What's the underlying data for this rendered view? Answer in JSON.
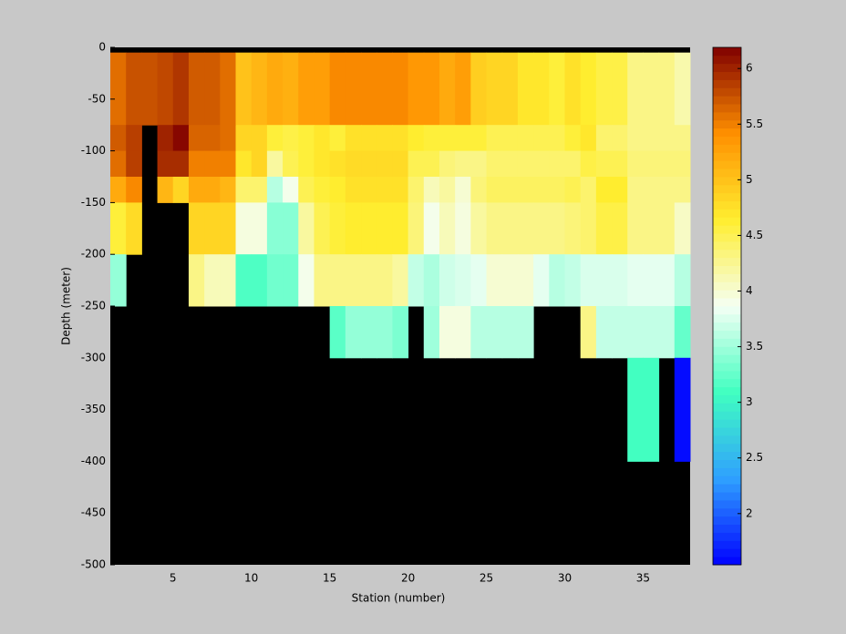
{
  "chart_data": {
    "type": "heatmap",
    "xlabel": "Station (number)",
    "ylabel": "Depth (meter)",
    "x_edges": [
      1,
      2,
      3,
      4,
      5,
      6,
      7,
      8,
      9,
      10,
      11,
      12,
      13,
      14,
      15,
      16,
      17,
      18,
      19,
      20,
      21,
      22,
      23,
      24,
      25,
      26,
      27,
      28,
      29,
      30,
      31,
      32,
      33,
      34,
      35,
      36,
      37,
      38
    ],
    "y_edges": [
      0,
      -5,
      -75,
      -100,
      -125,
      -150,
      -200,
      -250,
      -300,
      -400,
      -500
    ],
    "values": [
      [
        null,
        null,
        null,
        null,
        null,
        null,
        null,
        null,
        null,
        null,
        null,
        null,
        null,
        null,
        null,
        null,
        null,
        null,
        null,
        null,
        null,
        null,
        null,
        null,
        null,
        null,
        null,
        null,
        null,
        null,
        null,
        null,
        null,
        null,
        null,
        null,
        null
      ],
      [
        5.6,
        5.75,
        5.75,
        5.8,
        5.9,
        5.7,
        5.7,
        5.6,
        5.0,
        5.1,
        5.2,
        5.15,
        5.3,
        5.3,
        5.45,
        5.45,
        5.45,
        5.45,
        5.45,
        5.35,
        5.35,
        5.2,
        5.3,
        4.9,
        4.85,
        4.85,
        4.7,
        4.7,
        4.6,
        4.75,
        4.65,
        4.55,
        4.55,
        4.3,
        4.3,
        4.3,
        4.15
      ],
      [
        5.7,
        5.85,
        null,
        6.0,
        6.15,
        5.65,
        5.65,
        5.6,
        4.85,
        4.85,
        4.6,
        4.55,
        4.6,
        4.7,
        4.6,
        4.75,
        4.75,
        4.75,
        4.75,
        4.65,
        4.6,
        4.6,
        4.6,
        4.6,
        4.5,
        4.5,
        4.5,
        4.5,
        4.5,
        4.6,
        4.7,
        4.4,
        4.4,
        4.3,
        4.3,
        4.3,
        4.3
      ],
      [
        5.6,
        5.85,
        null,
        5.95,
        5.95,
        5.5,
        5.5,
        5.5,
        4.7,
        4.85,
        4.2,
        4.5,
        4.6,
        4.7,
        4.75,
        4.8,
        4.8,
        4.8,
        4.8,
        4.5,
        4.5,
        4.35,
        4.3,
        4.3,
        4.4,
        4.4,
        4.4,
        4.4,
        4.4,
        4.4,
        4.55,
        4.5,
        4.5,
        4.35,
        4.35,
        4.35,
        4.35
      ],
      [
        5.2,
        5.45,
        null,
        5.1,
        4.85,
        5.2,
        5.2,
        5.1,
        4.4,
        4.4,
        3.6,
        3.9,
        4.5,
        4.6,
        4.65,
        4.75,
        4.75,
        4.75,
        4.75,
        4.4,
        4.1,
        4.2,
        4.0,
        4.35,
        4.45,
        4.45,
        4.45,
        4.45,
        4.45,
        4.5,
        4.4,
        4.65,
        4.65,
        4.3,
        4.3,
        4.3,
        4.3
      ],
      [
        4.6,
        4.8,
        null,
        null,
        null,
        4.85,
        4.85,
        4.85,
        3.95,
        3.95,
        3.4,
        3.4,
        4.2,
        4.5,
        4.6,
        4.65,
        4.65,
        4.65,
        4.65,
        4.35,
        3.9,
        4.1,
        3.95,
        4.2,
        4.3,
        4.3,
        4.3,
        4.3,
        4.3,
        4.35,
        4.4,
        4.55,
        4.55,
        4.3,
        4.3,
        4.3,
        4.05
      ],
      [
        3.45,
        null,
        null,
        null,
        null,
        4.3,
        4.1,
        4.1,
        3.15,
        3.15,
        3.3,
        3.3,
        3.9,
        4.3,
        4.3,
        4.3,
        4.3,
        4.3,
        4.2,
        3.65,
        3.55,
        3.7,
        3.75,
        3.8,
        4.0,
        4.0,
        4.0,
        3.8,
        3.6,
        3.65,
        3.75,
        3.75,
        3.75,
        3.8,
        3.8,
        3.8,
        3.6
      ],
      [
        null,
        null,
        null,
        null,
        null,
        null,
        null,
        null,
        null,
        null,
        null,
        null,
        null,
        null,
        3.2,
        3.45,
        3.45,
        3.45,
        3.35,
        null,
        3.5,
        3.95,
        3.95,
        3.6,
        3.6,
        3.6,
        3.6,
        null,
        null,
        null,
        4.3,
        3.65,
        3.65,
        3.65,
        3.65,
        3.65,
        3.25
      ],
      [
        null,
        null,
        null,
        null,
        null,
        null,
        null,
        null,
        null,
        null,
        null,
        null,
        null,
        null,
        null,
        null,
        null,
        null,
        null,
        null,
        null,
        null,
        null,
        null,
        null,
        null,
        null,
        null,
        null,
        null,
        null,
        null,
        null,
        3.1,
        3.1,
        null,
        1.6
      ],
      [
        null,
        null,
        null,
        null,
        null,
        null,
        null,
        null,
        null,
        null,
        null,
        null,
        null,
        null,
        null,
        null,
        null,
        null,
        null,
        null,
        null,
        null,
        null,
        null,
        null,
        null,
        null,
        null,
        null,
        null,
        null,
        null,
        null,
        null,
        null,
        null,
        null
      ]
    ],
    "xlim": [
      1,
      38
    ],
    "xticks": [
      5,
      10,
      15,
      20,
      25,
      30,
      35
    ],
    "ylim": [
      -500,
      0
    ],
    "yticks": [
      0,
      -50,
      -100,
      -150,
      -200,
      -250,
      -300,
      -350,
      -400,
      -450,
      -500
    ],
    "clim": [
      1.54,
      6.19
    ],
    "cticks": [
      2,
      2.5,
      3,
      3.5,
      4,
      4.5,
      5,
      5.5,
      6
    ],
    "colormap": [
      "#0000ff",
      "#2fa0ff",
      "#40ffc0",
      "#f4fff4",
      "#ffee30",
      "#ff9000",
      "#800000"
    ],
    "missing_color": "#000000"
  }
}
